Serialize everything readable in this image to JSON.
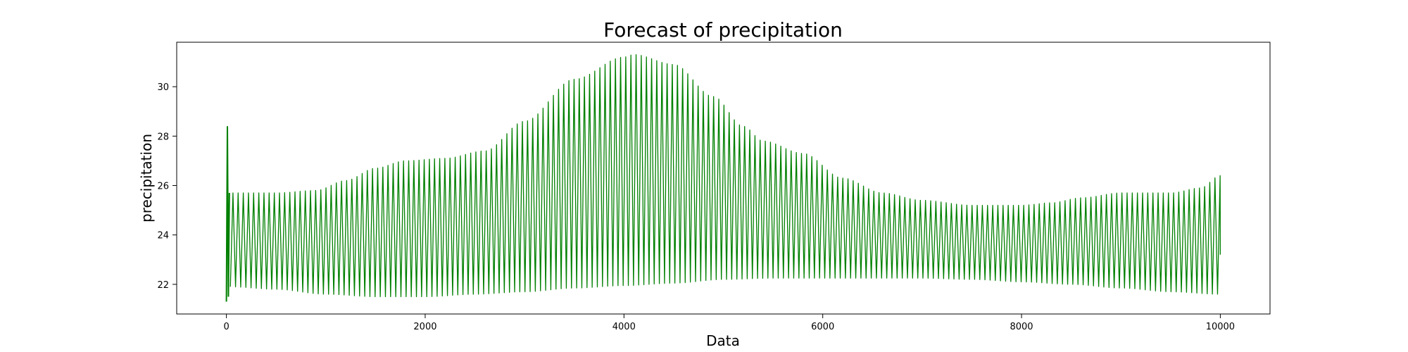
{
  "chart_data": {
    "type": "line",
    "title": "Forecast of precipitation",
    "xlabel": "Data",
    "ylabel": "precipitation",
    "xlim": [
      -500,
      10500
    ],
    "ylim": [
      20.8,
      31.8
    ],
    "x_ticks": [
      0,
      2000,
      4000,
      6000,
      8000,
      10000
    ],
    "y_ticks": [
      22,
      24,
      26,
      28,
      30
    ],
    "grid": false,
    "legend": null,
    "series_color": "#008000",
    "series": [
      {
        "x_start": 0,
        "x_end": 10000,
        "period": 52,
        "initial_spike": {
          "x": [
            0,
            10,
            20,
            30
          ],
          "y": [
            21.3,
            28.4,
            21.5,
            25.7
          ]
        },
        "upper_envelope": {
          "x": [
            50,
            500,
            900,
            1200,
            1500,
            1800,
            2200,
            2600,
            3000,
            3500,
            4000,
            4100,
            4500,
            4900,
            5200,
            5400,
            5800,
            6200,
            6600,
            7000,
            7500,
            8000,
            8300,
            8600,
            9000,
            9500,
            9800,
            10000
          ],
          "y": [
            25.7,
            25.7,
            25.8,
            26.2,
            26.7,
            27.0,
            27.1,
            27.4,
            28.6,
            30.3,
            31.2,
            31.3,
            30.9,
            29.6,
            28.4,
            27.8,
            27.3,
            26.3,
            25.7,
            25.4,
            25.2,
            25.2,
            25.3,
            25.5,
            25.7,
            25.7,
            25.9,
            26.4
          ]
        },
        "lower_envelope": {
          "x": [
            50,
            500,
            1000,
            1500,
            2000,
            2500,
            3000,
            3500,
            4000,
            4500,
            5000,
            5500,
            6000,
            6500,
            7000,
            7500,
            8000,
            8500,
            9000,
            9500,
            10000
          ],
          "y": [
            21.9,
            21.8,
            21.6,
            21.5,
            21.5,
            21.6,
            21.7,
            21.85,
            21.95,
            22.05,
            22.2,
            22.25,
            22.25,
            22.25,
            22.25,
            22.2,
            22.1,
            22.0,
            21.85,
            21.7,
            21.6
          ]
        }
      }
    ]
  }
}
